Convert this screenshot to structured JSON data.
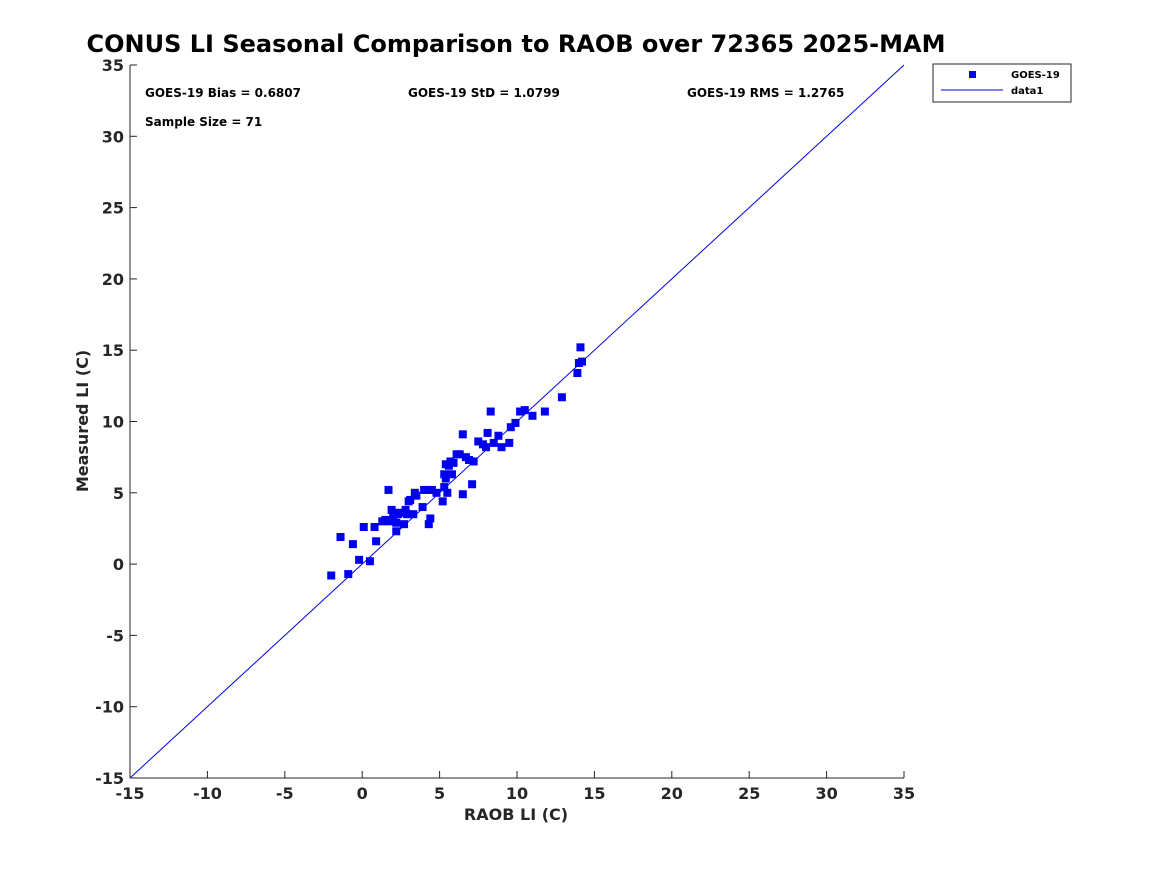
{
  "chart_data": {
    "type": "scatter",
    "title": "CONUS LI Seasonal Comparison to RAOB over 72365 2025-MAM",
    "xlabel": "RAOB LI (C)",
    "ylabel": "Measured LI (C)",
    "xlim": [
      -15,
      35
    ],
    "ylim": [
      -15,
      35
    ],
    "xticks": [
      -15,
      -10,
      -5,
      0,
      5,
      10,
      15,
      20,
      25,
      30,
      35
    ],
    "yticks": [
      -15,
      -10,
      -5,
      0,
      5,
      10,
      15,
      20,
      25,
      30,
      35
    ],
    "grid": false,
    "legend_position": "outside-top-right",
    "colors": {
      "series": "#0000ee",
      "axis": "#262626"
    },
    "stats": {
      "bias": "GOES-19 Bias = 0.6807",
      "std": "GOES-19 StD = 1.0799",
      "rms": "GOES-19 RMS = 1.2765",
      "sample": "Sample Size = 71"
    },
    "series": [
      {
        "name": "GOES-19",
        "kind": "scatter",
        "marker": "square",
        "x": [
          -2.0,
          -1.4,
          -0.9,
          -0.6,
          -0.2,
          0.1,
          0.5,
          0.8,
          0.9,
          1.3,
          1.5,
          1.7,
          1.9,
          2.0,
          2.2,
          2.2,
          2.3,
          2.4,
          2.7,
          2.8,
          2.9,
          3.0,
          3.1,
          3.3,
          3.4,
          3.5,
          3.9,
          4.0,
          4.3,
          4.4,
          4.5,
          4.8,
          5.2,
          5.3,
          5.3,
          5.4,
          5.4,
          5.5,
          5.6,
          5.7,
          5.8,
          5.9,
          6.1,
          6.3,
          6.5,
          6.5,
          6.7,
          6.9,
          7.1,
          7.2,
          7.5,
          7.8,
          8.0,
          8.3,
          8.5,
          8.8,
          9.0,
          9.5,
          9.6,
          9.9,
          10.2,
          10.5,
          11.0,
          11.8,
          12.9,
          13.9,
          14.0,
          14.1,
          14.2,
          8.1,
          1.7
        ],
        "y": [
          -0.8,
          1.9,
          -0.7,
          1.4,
          0.3,
          2.6,
          0.2,
          2.6,
          1.6,
          3.0,
          3.1,
          3.0,
          3.8,
          3.3,
          2.3,
          2.9,
          3.5,
          3.6,
          2.8,
          3.8,
          3.5,
          4.4,
          4.5,
          3.5,
          5.0,
          4.8,
          4.0,
          5.2,
          2.8,
          3.2,
          5.2,
          5.0,
          4.4,
          5.4,
          6.3,
          6.0,
          7.0,
          5.0,
          6.9,
          7.2,
          6.3,
          7.1,
          7.7,
          7.7,
          4.9,
          9.1,
          7.5,
          7.3,
          5.6,
          7.2,
          8.6,
          8.4,
          8.2,
          10.7,
          8.5,
          9.0,
          8.2,
          8.5,
          9.6,
          9.9,
          10.7,
          10.8,
          10.4,
          10.7,
          11.7,
          13.4,
          14.1,
          15.2,
          14.2,
          9.2,
          5.2
        ]
      },
      {
        "name": "data1",
        "kind": "line",
        "x": [
          -15,
          35
        ],
        "y": [
          -15,
          35
        ]
      }
    ]
  }
}
